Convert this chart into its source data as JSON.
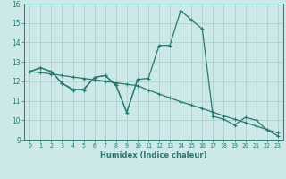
{
  "x": [
    0,
    1,
    2,
    3,
    4,
    5,
    6,
    7,
    8,
    9,
    10,
    11,
    12,
    13,
    14,
    15,
    16,
    17,
    18,
    19,
    20,
    21,
    22,
    23
  ],
  "y_main": [
    12.5,
    12.7,
    12.5,
    11.9,
    11.6,
    11.55,
    12.2,
    12.3,
    11.8,
    10.4,
    12.1,
    12.15,
    13.85,
    13.85,
    15.65,
    15.15,
    14.7,
    10.2,
    10.05,
    9.75,
    10.15,
    10.0,
    9.5,
    9.2
  ],
  "y_trend": [
    12.5,
    12.45,
    12.38,
    12.3,
    12.22,
    12.15,
    12.08,
    12.0,
    11.92,
    11.85,
    11.78,
    11.55,
    11.35,
    11.15,
    10.95,
    10.78,
    10.6,
    10.42,
    10.22,
    10.05,
    9.88,
    9.7,
    9.52,
    9.35
  ],
  "y_extra": [
    12.5,
    12.7,
    12.5,
    11.9,
    11.55,
    11.6,
    12.2,
    12.3,
    11.8,
    10.4,
    12.1,
    null,
    null,
    null,
    null,
    null,
    null,
    null,
    null,
    null,
    null,
    null,
    null,
    null
  ],
  "background_color": "#cce8e8",
  "grid_color": "#aacccc",
  "line_color": "#2a7a6e",
  "xlabel": "Humidex (Indice chaleur)",
  "xlim": [
    -0.5,
    23.5
  ],
  "ylim": [
    9,
    16
  ],
  "yticks": [
    9,
    10,
    11,
    12,
    13,
    14,
    15,
    16
  ],
  "xticks": [
    0,
    1,
    2,
    3,
    4,
    5,
    6,
    7,
    8,
    9,
    10,
    11,
    12,
    13,
    14,
    15,
    16,
    17,
    18,
    19,
    20,
    21,
    22,
    23
  ],
  "marker": "+",
  "markersize": 3.5,
  "linewidth": 0.9
}
